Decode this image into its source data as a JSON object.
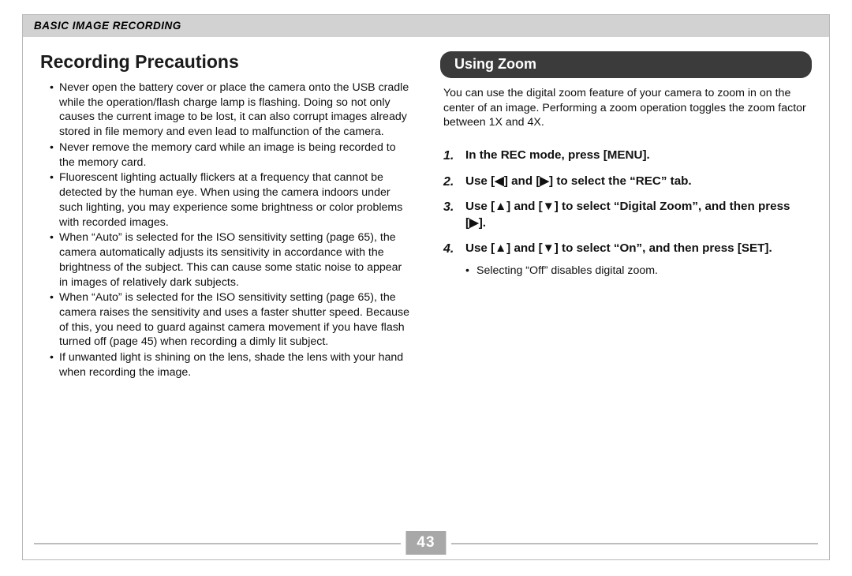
{
  "header": {
    "title": "BASIC IMAGE RECORDING"
  },
  "left": {
    "title": "Recording Precautions",
    "bullets": [
      "Never open the battery cover or place the camera onto the USB cradle while the operation/flash charge lamp is flashing. Doing so not only causes the current image to be lost, it can also corrupt images already stored in file memory and even lead to malfunction of the camera.",
      "Never remove the memory card while an image is being recorded to the memory card.",
      "Fluorescent lighting actually flickers at a frequency that cannot be detected by the human eye. When using the camera indoors under such lighting, you may experience some brightness or color problems with recorded images.",
      "When “Auto” is selected for the ISO sensitivity setting (page 65), the camera automatically adjusts its sensitivity in accordance with the brightness of the subject. This can cause some static noise to appear in images of relatively dark subjects.",
      "When “Auto” is selected for the ISO sensitivity setting (page 65), the camera raises the sensitivity and uses a faster shutter speed. Because of this, you need to guard against camera movement if you have flash turned off (page 45) when recording a dimly lit subject.",
      "If unwanted light is shining on the lens, shade the lens with your hand when recording the image."
    ]
  },
  "right": {
    "section_title": "Using Zoom",
    "intro": "You can use the digital zoom feature of your camera to zoom in on the center of an image. Performing a zoom operation toggles the zoom factor between 1X and 4X.",
    "steps": [
      {
        "num": "1.",
        "text": "In the REC mode, press [MENU]."
      },
      {
        "num": "2.",
        "text": "Use [◀] and [▶] to select the “REC” tab."
      },
      {
        "num": "3.",
        "text": "Use [▲] and [▼] to select “Digital Zoom”, and then press [▶]."
      },
      {
        "num": "4.",
        "text": "Use [▲] and [▼] to select “On”, and then press [SET].",
        "sub": [
          "Selecting “Off” disables digital zoom."
        ]
      }
    ]
  },
  "page_number": "43",
  "colors": {
    "header_bg": "#d2d2d2",
    "pill_bg": "#3b3b3b",
    "footer_line": "#bdbdbd",
    "page_badge_bg": "#a8a8a8",
    "border": "#b8b8b8"
  }
}
